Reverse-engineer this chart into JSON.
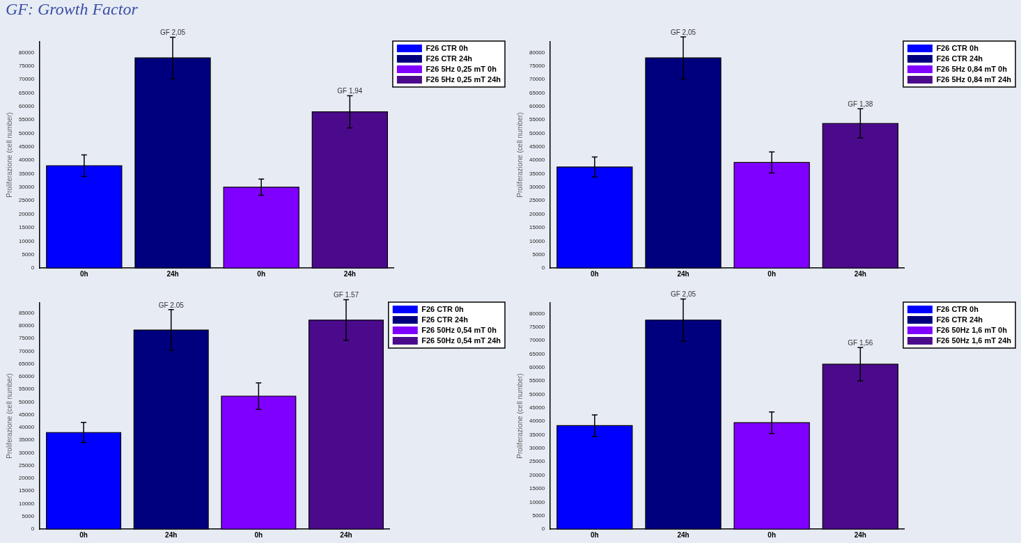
{
  "chart_data": [
    {
      "type": "bar",
      "title": "GF: Growth Factor",
      "ylabel": "Proliferazione (cell number)",
      "categories": [
        "0h",
        "24h",
        "0h",
        "24h"
      ],
      "ylim": [
        0,
        84000
      ],
      "yticks": [
        0,
        5000,
        10000,
        15000,
        20000,
        25000,
        30000,
        35000,
        40000,
        45000,
        50000,
        55000,
        60000,
        65000,
        70000,
        75000,
        80000
      ],
      "legend": "top right",
      "series": [
        {
          "name": "F26 CTR 0h",
          "color": "#0000ff",
          "values": [
            38000,
            null,
            null,
            null
          ],
          "errors": [
            4000,
            null,
            null,
            null
          ]
        },
        {
          "name": "F26 CTR 24h",
          "color": "#00007f",
          "values": [
            null,
            78000,
            null,
            null
          ],
          "errors": [
            null,
            7700,
            null,
            null
          ],
          "value_labels": [
            null,
            "GF 2,05",
            null,
            null
          ]
        },
        {
          "name": "F26 5Hz 0,25 mT 0h",
          "color": "#7f00ff",
          "values": [
            null,
            null,
            30000,
            null
          ],
          "errors": [
            null,
            null,
            3000,
            null
          ]
        },
        {
          "name": "F26 5Hz 0,25 mT 24h",
          "color": "#4b0a8c",
          "values": [
            null,
            null,
            null,
            58000
          ],
          "errors": [
            null,
            null,
            null,
            6000
          ],
          "value_labels": [
            null,
            null,
            null,
            "GF 1,94"
          ]
        }
      ]
    },
    {
      "type": "bar",
      "ylabel": "Proliferazione (cell number)",
      "categories": [
        "0h",
        "24h",
        "0h",
        "24h"
      ],
      "ylim": [
        0,
        84000
      ],
      "yticks": [
        0,
        5000,
        10000,
        15000,
        20000,
        25000,
        30000,
        35000,
        40000,
        45000,
        50000,
        55000,
        60000,
        65000,
        70000,
        75000,
        80000
      ],
      "legend": "top right",
      "series": [
        {
          "name": "F26 CTR 0h",
          "color": "#0000ff",
          "values": [
            37500,
            null,
            null,
            null
          ],
          "errors": [
            3700,
            null,
            null,
            null
          ]
        },
        {
          "name": "F26 CTR 24h",
          "color": "#00007f",
          "values": [
            null,
            78000,
            null,
            null
          ],
          "errors": [
            null,
            7800,
            null,
            null
          ],
          "value_labels": [
            null,
            "GF 2,05",
            null,
            null
          ]
        },
        {
          "name": "F26 5Hz 0,84 mT 0h",
          "color": "#7f00ff",
          "values": [
            null,
            null,
            39200,
            null
          ],
          "errors": [
            null,
            null,
            3900,
            null
          ]
        },
        {
          "name": "F26 5Hz 0,84 mT 24h",
          "color": "#4b0a8c",
          "values": [
            null,
            null,
            null,
            53700
          ],
          "errors": [
            null,
            null,
            null,
            5400
          ],
          "value_labels": [
            null,
            null,
            null,
            "GF 1,38"
          ]
        }
      ]
    },
    {
      "type": "bar",
      "ylabel": "Proliferazione (cell number)",
      "categories": [
        "0h",
        "24h",
        "0h",
        "24h"
      ],
      "ylim": [
        0,
        89000
      ],
      "yticks": [
        0,
        5000,
        10000,
        15000,
        20000,
        25000,
        30000,
        35000,
        40000,
        45000,
        50000,
        55000,
        60000,
        65000,
        70000,
        75000,
        80000,
        85000
      ],
      "legend": "top right",
      "series": [
        {
          "name": "F26 CTR 0h",
          "color": "#0000ff",
          "values": [
            38000,
            null,
            null,
            null
          ],
          "errors": [
            4000,
            null,
            null,
            null
          ]
        },
        {
          "name": "F26 CTR 24h",
          "color": "#00007f",
          "values": [
            null,
            78300,
            null,
            null
          ],
          "errors": [
            null,
            8000,
            null,
            null
          ],
          "value_labels": [
            null,
            "GF 2.05",
            null,
            null
          ]
        },
        {
          "name": "F26 50Hz 0,54 mT 0h",
          "color": "#7f00ff",
          "values": [
            null,
            null,
            52300,
            null
          ],
          "errors": [
            null,
            null,
            5200,
            null
          ]
        },
        {
          "name": "F26 50Hz 0,54 mT 24h",
          "color": "#4b0a8c",
          "values": [
            null,
            null,
            null,
            82200
          ],
          "errors": [
            null,
            null,
            null,
            8000
          ],
          "value_labels": [
            null,
            null,
            null,
            "GF 1.57"
          ]
        }
      ]
    },
    {
      "type": "bar",
      "ylabel": "Proliferazione (cell number)",
      "categories": [
        "0h",
        "24h",
        "0h",
        "24h"
      ],
      "ylim": [
        0,
        84000
      ],
      "yticks": [
        0,
        5000,
        10000,
        15000,
        20000,
        25000,
        30000,
        35000,
        40000,
        45000,
        50000,
        55000,
        60000,
        65000,
        70000,
        75000,
        80000
      ],
      "legend": "top right",
      "series": [
        {
          "name": "F26 CTR 0h",
          "color": "#0000ff",
          "values": [
            38400,
            null,
            null,
            null
          ],
          "errors": [
            4000,
            null,
            null,
            null
          ]
        },
        {
          "name": "F26 CTR 24h",
          "color": "#00007f",
          "values": [
            null,
            77600,
            null,
            null
          ],
          "errors": [
            null,
            7800,
            null,
            null
          ],
          "value_labels": [
            null,
            "GF 2,05",
            null,
            null
          ]
        },
        {
          "name": "F26 50Hz 1,6 mT 0h",
          "color": "#7f00ff",
          "values": [
            null,
            null,
            39500,
            null
          ],
          "errors": [
            null,
            null,
            4000,
            null
          ]
        },
        {
          "name": "F26 50Hz 1,6 mT 24h",
          "color": "#4b0a8c",
          "values": [
            null,
            null,
            null,
            61200
          ],
          "errors": [
            null,
            null,
            null,
            6200
          ],
          "value_labels": [
            null,
            null,
            null,
            "GF 1,56"
          ]
        }
      ]
    }
  ]
}
